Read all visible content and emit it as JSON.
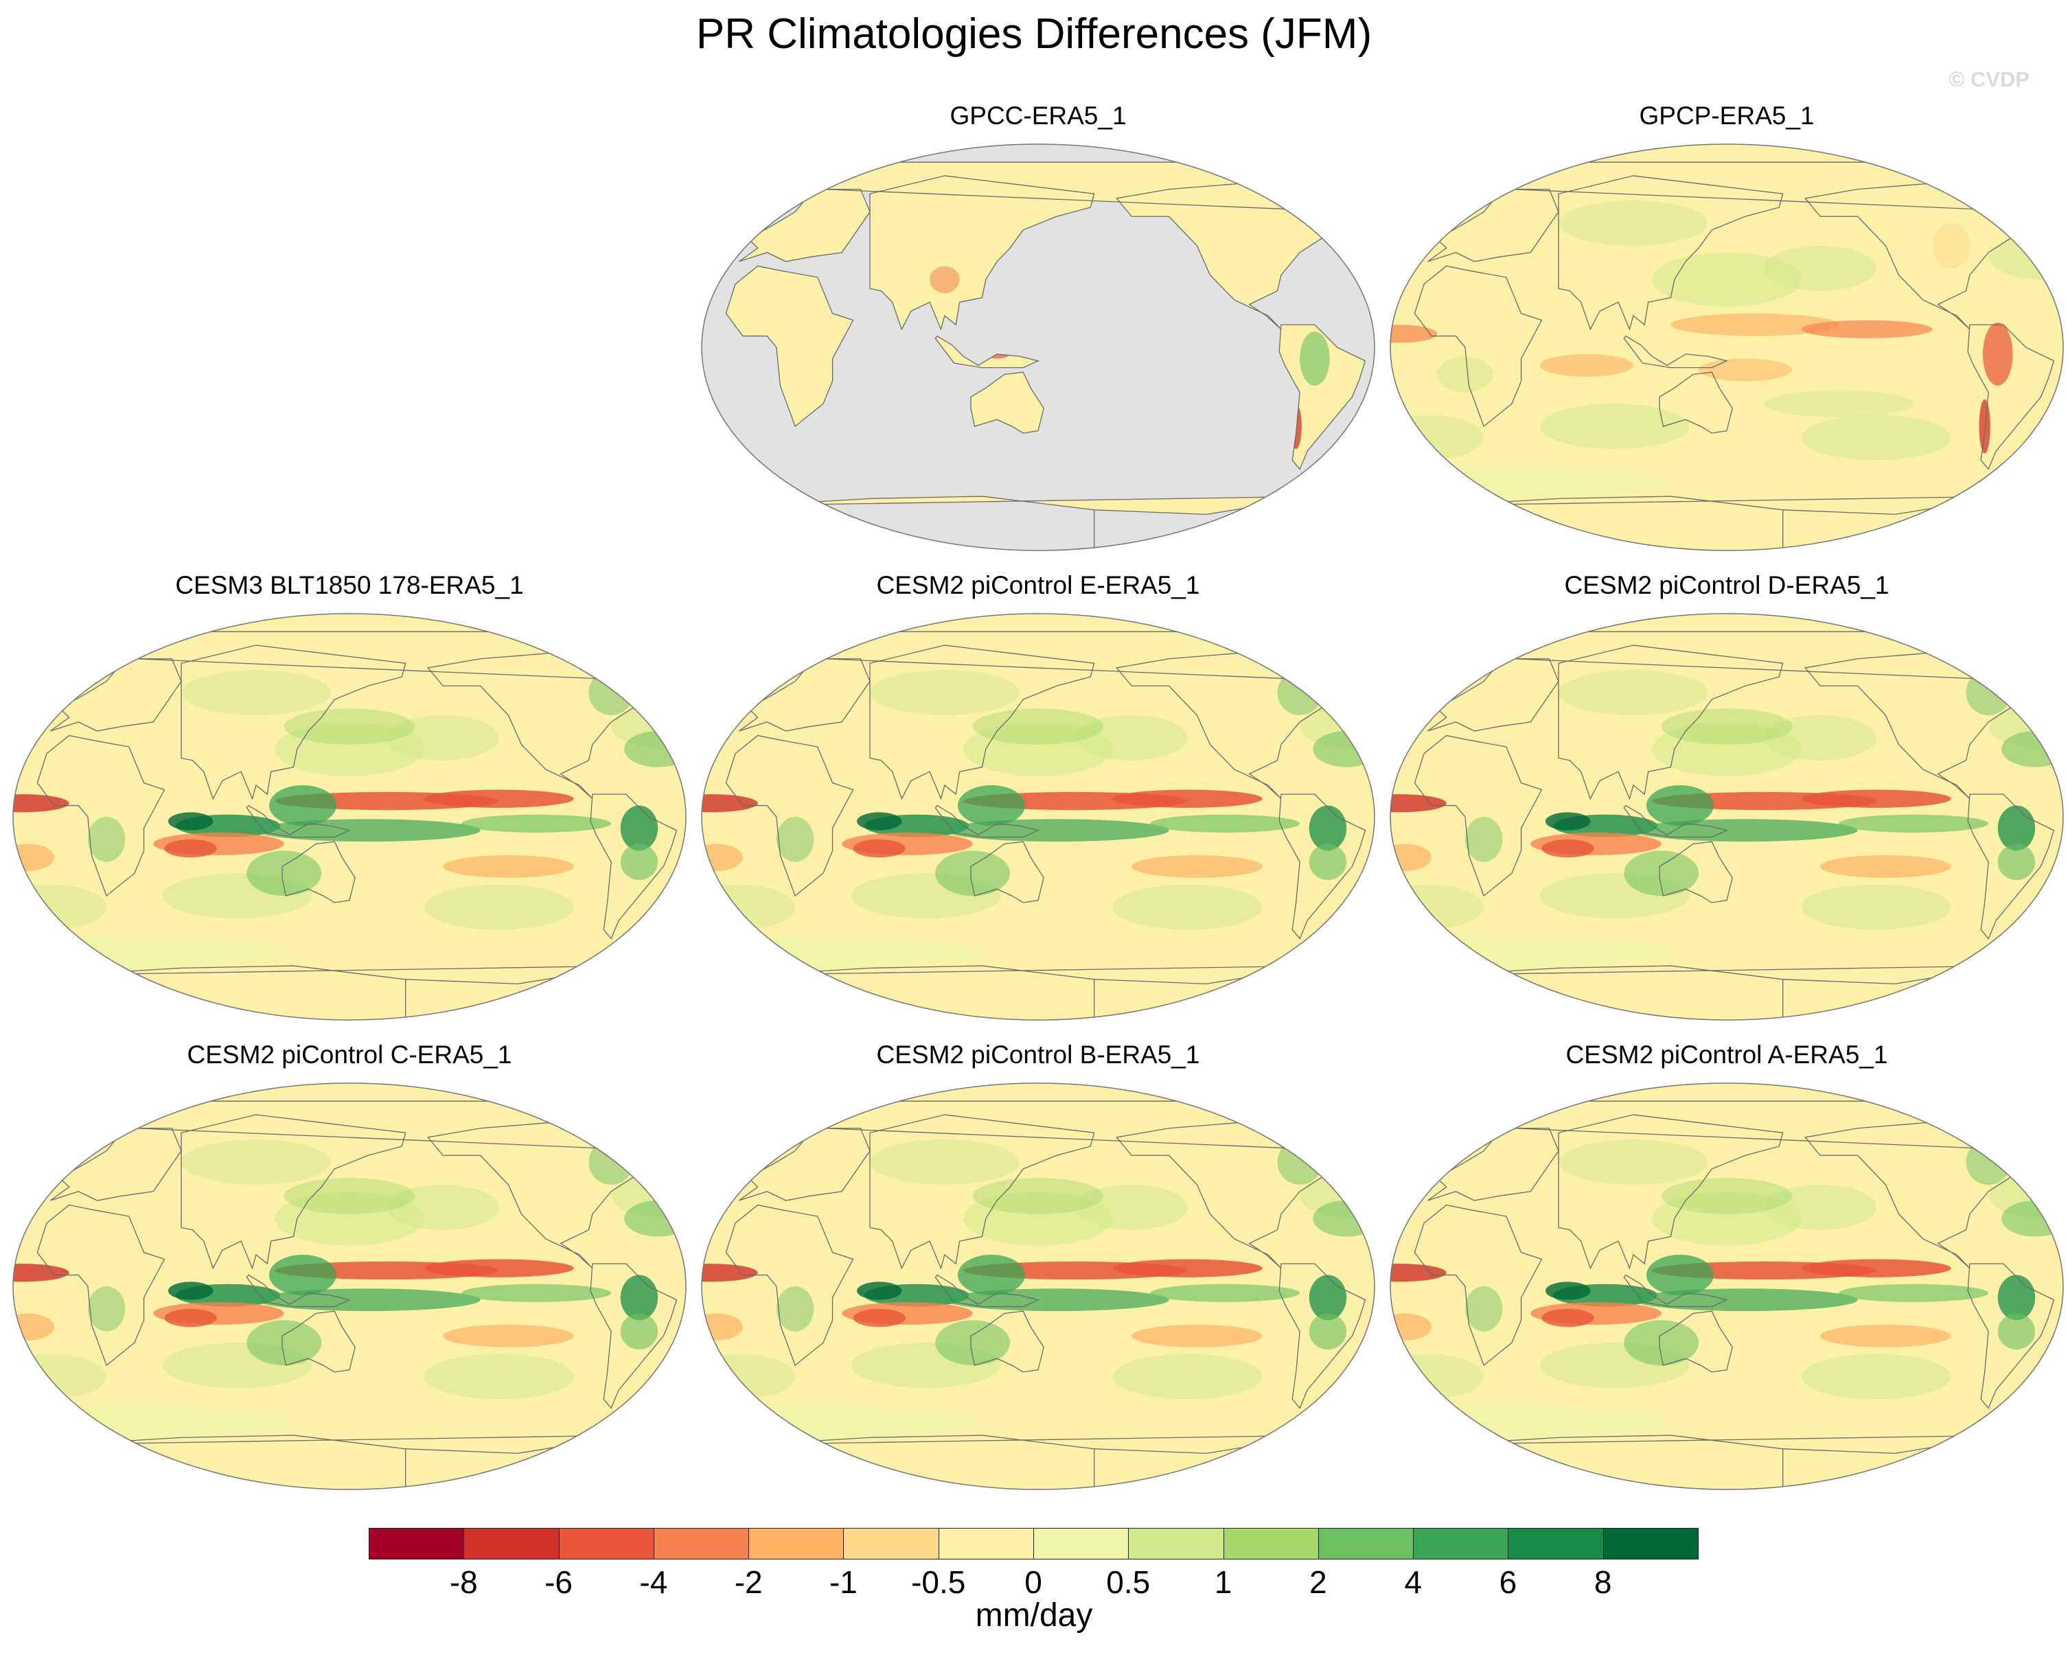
{
  "title": "PR Climatologies Differences (JFM)",
  "watermark": "© CVDP",
  "panels": [
    {
      "title": "GPCC-ERA5_1",
      "ocean_masked": true
    },
    {
      "title": "GPCP-ERA5_1",
      "ocean_masked": false
    },
    {
      "title": "CESM3 BLT1850 178-ERA5_1",
      "ocean_masked": false
    },
    {
      "title": "CESM2 piControl E-ERA5_1",
      "ocean_masked": false
    },
    {
      "title": "CESM2 piControl D-ERA5_1",
      "ocean_masked": false
    },
    {
      "title": "CESM2 piControl C-ERA5_1",
      "ocean_masked": false
    },
    {
      "title": "CESM2 piControl B-ERA5_1",
      "ocean_masked": false
    },
    {
      "title": "CESM2 piControl A-ERA5_1",
      "ocean_masked": false
    }
  ],
  "colorbar": {
    "labels": [
      "-8",
      "-6",
      "-4",
      "-2",
      "-1",
      "-0.5",
      "0",
      "0.5",
      "1",
      "2",
      "4",
      "6",
      "8"
    ],
    "colors": [
      "#a50026",
      "#d0322a",
      "#e85537",
      "#f6834f",
      "#fdb264",
      "#fdd889",
      "#fdf1a9",
      "#eef7aa",
      "#cfe98b",
      "#a6d96a",
      "#6dc163",
      "#3aa556",
      "#178c48",
      "#006837"
    ],
    "unit": "mm/day"
  },
  "map_colors": {
    "land_mask": "#e2e2e2",
    "coastline": "#6a6a6a",
    "outline": "#777777"
  }
}
